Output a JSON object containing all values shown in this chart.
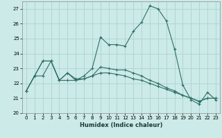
{
  "title": "",
  "xlabel": "Humidex (Indice chaleur)",
  "bg_color": "#cceae7",
  "grid_color": "#aad4d0",
  "line_color": "#2e6e65",
  "xlim": [
    -0.5,
    23.5
  ],
  "ylim": [
    20.0,
    27.5
  ],
  "yticks": [
    20,
    21,
    22,
    23,
    24,
    25,
    26,
    27
  ],
  "xticks": [
    0,
    1,
    2,
    3,
    4,
    5,
    6,
    7,
    8,
    9,
    10,
    11,
    12,
    13,
    14,
    15,
    16,
    17,
    18,
    19,
    20,
    21,
    22,
    23
  ],
  "line1_x": [
    0,
    1,
    2,
    3,
    4,
    5,
    6,
    7,
    8,
    9,
    10,
    11,
    12,
    13,
    14,
    15,
    16,
    17,
    18,
    19,
    20,
    21,
    22,
    23
  ],
  "line1_y": [
    21.5,
    22.5,
    23.5,
    23.5,
    22.2,
    22.7,
    22.2,
    22.5,
    23.0,
    25.1,
    24.6,
    24.6,
    24.5,
    25.5,
    26.1,
    27.2,
    27.0,
    26.2,
    24.3,
    21.9,
    20.9,
    20.6,
    21.4,
    20.9
  ],
  "line2_x": [
    0,
    1,
    2,
    3,
    4,
    5,
    6,
    7,
    8,
    9,
    10,
    11,
    12,
    13,
    14,
    15,
    16,
    17,
    18,
    19,
    20,
    21,
    22,
    23
  ],
  "line2_y": [
    21.5,
    22.5,
    23.5,
    23.5,
    22.2,
    22.7,
    22.3,
    22.3,
    22.5,
    23.1,
    23.0,
    22.9,
    22.9,
    22.7,
    22.5,
    22.2,
    22.0,
    21.7,
    21.5,
    21.2,
    21.0,
    20.8,
    21.0,
    21.0
  ],
  "line3_x": [
    0,
    1,
    2,
    3,
    4,
    5,
    6,
    7,
    8,
    9,
    10,
    11,
    12,
    13,
    14,
    15,
    16,
    17,
    18,
    19,
    20,
    21,
    22,
    23
  ],
  "line3_y": [
    21.5,
    22.5,
    22.5,
    23.5,
    22.2,
    22.2,
    22.2,
    22.3,
    22.5,
    22.7,
    22.7,
    22.6,
    22.5,
    22.3,
    22.2,
    22.0,
    21.8,
    21.6,
    21.4,
    21.2,
    21.0,
    20.8,
    21.0,
    21.0
  ]
}
